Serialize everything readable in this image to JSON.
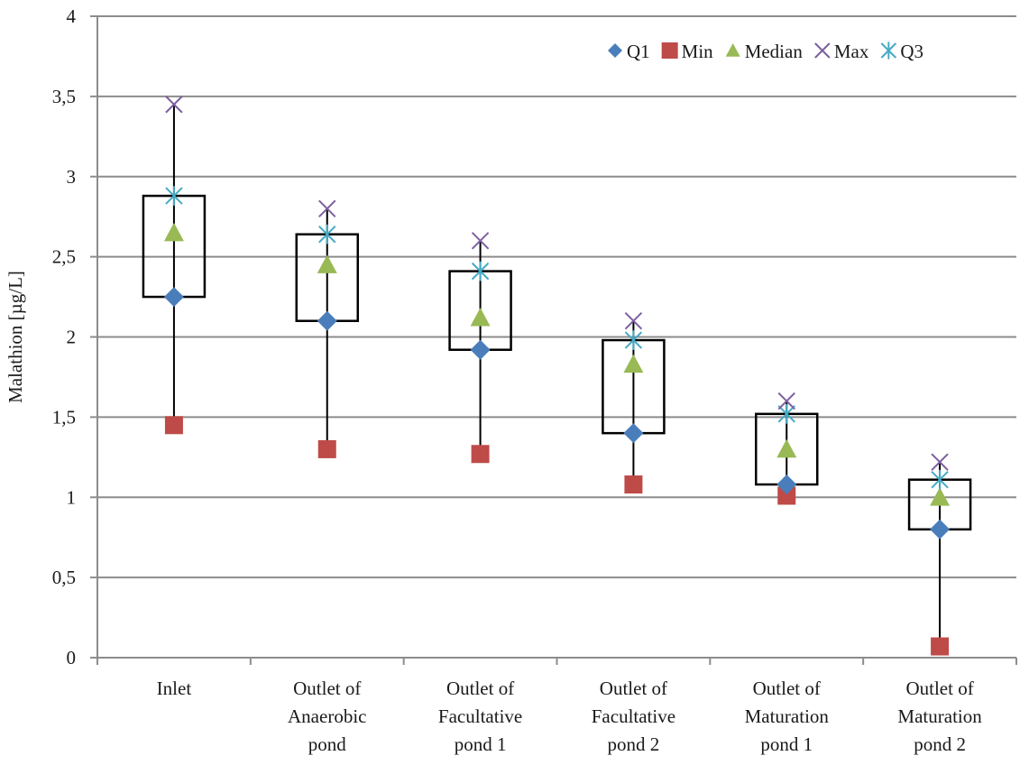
{
  "chart_data": {
    "type": "boxplot",
    "title": "",
    "xlabel": "",
    "ylabel": "Malathion [µg/L]",
    "ylim": [
      0,
      4
    ],
    "yticks": [
      0,
      0.5,
      1,
      1.5,
      2,
      2.5,
      3,
      3.5,
      4
    ],
    "ytick_labels": [
      "0",
      "0,5",
      "1",
      "1,5",
      "2",
      "2,5",
      "3",
      "3,5",
      "4"
    ],
    "grid": "horizontal",
    "legend_position": "top-right",
    "categories": [
      [
        "Inlet"
      ],
      [
        "Outlet of",
        "Anaerobic",
        "pond"
      ],
      [
        "Outlet of",
        "Facultative",
        "pond 1"
      ],
      [
        "Outlet of",
        "Facultative",
        "pond 2"
      ],
      [
        "Outlet of",
        "Maturation",
        "pond 1"
      ],
      [
        "Outlet of",
        "Maturation",
        "pond 2"
      ]
    ],
    "series": [
      {
        "name": "Q1",
        "marker": "diamond",
        "color": "#4a7ebb",
        "values": [
          2.25,
          2.1,
          1.92,
          1.4,
          1.08,
          0.8
        ]
      },
      {
        "name": "Min",
        "marker": "square",
        "color": "#be4b48",
        "values": [
          1.45,
          1.3,
          1.27,
          1.08,
          1.01,
          0.07
        ]
      },
      {
        "name": "Median",
        "marker": "triangle",
        "color": "#98b954",
        "values": [
          2.65,
          2.45,
          2.12,
          1.83,
          1.3,
          1.0
        ]
      },
      {
        "name": "Max",
        "marker": "x",
        "color": "#7d60a0",
        "values": [
          3.45,
          2.8,
          2.6,
          2.1,
          1.6,
          1.22
        ]
      },
      {
        "name": "Q3",
        "marker": "asterisk",
        "color": "#46aac5",
        "values": [
          2.88,
          2.64,
          2.41,
          1.98,
          1.52,
          1.11
        ]
      }
    ]
  }
}
